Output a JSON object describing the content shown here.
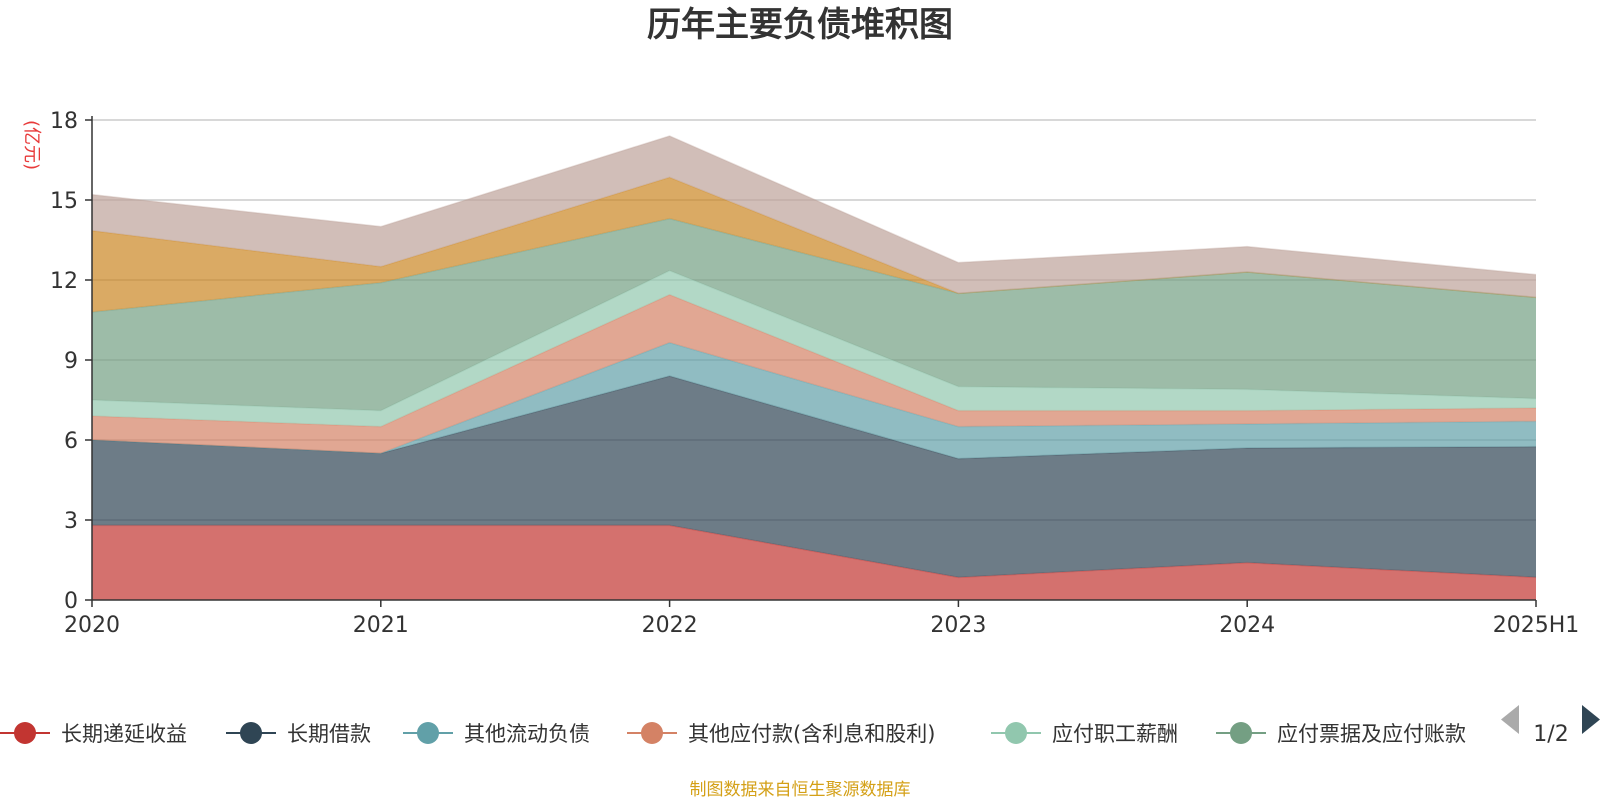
{
  "chart_data": {
    "type": "area",
    "title": "历年主要负债堆积图",
    "ylabel": "(亿元)",
    "xlabel": "",
    "ylim": [
      0,
      18
    ],
    "yticks": [
      0,
      3,
      6,
      9,
      12,
      15,
      18
    ],
    "grid": true,
    "stacked": true,
    "categories": [
      "2020",
      "2021",
      "2022",
      "2023",
      "2024",
      "2025H1"
    ],
    "series": [
      {
        "name": "长期递延收益",
        "color": "#c23531",
        "values": [
          2.8,
          2.8,
          2.8,
          0.85,
          1.4,
          0.85
        ]
      },
      {
        "name": "长期借款",
        "color": "#2f4554",
        "values": [
          3.2,
          2.7,
          5.6,
          4.45,
          4.3,
          4.9
        ]
      },
      {
        "name": "其他流动负债",
        "color": "#61a0a8",
        "values": [
          0.0,
          0.0,
          1.25,
          1.2,
          0.9,
          0.95
        ]
      },
      {
        "name": "其他应付款(含利息和股利)",
        "color": "#d48265",
        "values": [
          0.9,
          1.0,
          1.8,
          0.6,
          0.5,
          0.5
        ]
      },
      {
        "name": "应付职工薪酬",
        "color": "#91c7ae",
        "values": [
          0.6,
          0.6,
          0.9,
          0.9,
          0.8,
          0.35
        ]
      },
      {
        "name": "应付票据及应付账款",
        "color": "#749f83",
        "values": [
          3.3,
          4.8,
          1.95,
          3.5,
          4.4,
          3.8
        ]
      },
      {
        "name": "",
        "color": "#ca8622",
        "values": [
          3.05,
          0.6,
          1.55,
          0.0,
          0.0,
          0.0
        ]
      },
      {
        "name": "",
        "color": "#bda29a",
        "values": [
          1.35,
          1.5,
          1.55,
          1.15,
          0.95,
          0.85
        ]
      }
    ],
    "legend": {
      "placement": "bottom",
      "visible_items": [
        "长期递延收益",
        "长期借款",
        "其他流动负债",
        "其他应付款(含利息和股利)",
        "应付职工薪酬",
        "应付票据及应付账款"
      ],
      "truncated_last_label": "应付票据及应付账款",
      "page": "1/2"
    },
    "source": "制图数据来自恒生聚源数据库"
  }
}
